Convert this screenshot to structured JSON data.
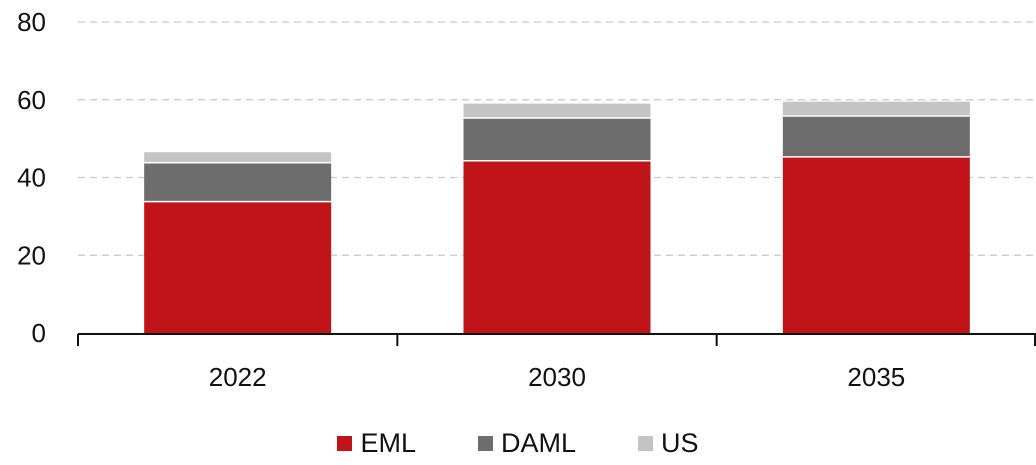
{
  "chart_data": {
    "type": "bar",
    "stacked": true,
    "categories": [
      "2022",
      "2030",
      "2035"
    ],
    "series": [
      {
        "name": "EML",
        "values": [
          34,
          44.5,
          45.5
        ],
        "color": "#c01418"
      },
      {
        "name": "DAML",
        "values": [
          10,
          11,
          10.5
        ],
        "color": "#6d6d6d"
      },
      {
        "name": "US",
        "values": [
          2.5,
          3.5,
          3.5
        ],
        "color": "#c4c4c4"
      }
    ],
    "ylim": [
      0,
      80
    ],
    "yticks": [
      "0",
      "20",
      "40",
      "60",
      "80"
    ],
    "grid": true,
    "legend_position": "bottom"
  }
}
